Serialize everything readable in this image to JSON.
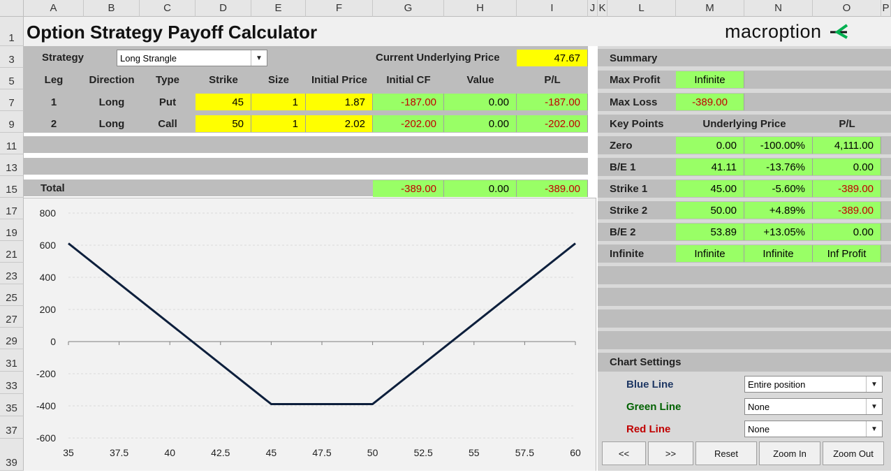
{
  "columns": [
    "A",
    "B",
    "C",
    "D",
    "E",
    "F",
    "G",
    "H",
    "I",
    "J",
    "K",
    "L",
    "M",
    "N",
    "O",
    "P"
  ],
  "rows": [
    "1",
    "3",
    "5",
    "7",
    "9",
    "11",
    "13",
    "15",
    "17",
    "19",
    "21",
    "23",
    "25",
    "27",
    "29",
    "31",
    "33",
    "35",
    "37",
    "39"
  ],
  "title": "Option Strategy Payoff Calculator",
  "logo": {
    "text": "macroption",
    "accent": "#00b050"
  },
  "strategy": {
    "label": "Strategy",
    "value": "Long Strangle"
  },
  "underlying": {
    "label": "Current Underlying Price",
    "value": "47.67"
  },
  "legs_table": {
    "headers": [
      "Leg",
      "Direction",
      "Type",
      "Strike",
      "Size",
      "Initial Price",
      "Initial CF",
      "Value",
      "P/L"
    ],
    "rows": [
      {
        "leg": "1",
        "direction": "Long",
        "type": "Put",
        "strike": "45",
        "size": "1",
        "price": "1.87",
        "cf": "-187.00",
        "value": "0.00",
        "pl": "-187.00"
      },
      {
        "leg": "2",
        "direction": "Long",
        "type": "Call",
        "strike": "50",
        "size": "1",
        "price": "2.02",
        "cf": "-202.00",
        "value": "0.00",
        "pl": "-202.00"
      }
    ],
    "total": {
      "label": "Total",
      "cf": "-389.00",
      "value": "0.00",
      "pl": "-389.00"
    }
  },
  "summary": {
    "title": "Summary",
    "max_profit": {
      "label": "Max Profit",
      "value": "Infinite"
    },
    "max_loss": {
      "label": "Max Loss",
      "value": "-389.00"
    }
  },
  "key_points": {
    "headers": [
      "Key Points",
      "Underlying Price",
      "P/L"
    ],
    "rows": [
      {
        "label": "Zero",
        "price": "0.00",
        "pct": "-100.00%",
        "pl": "4,111.00"
      },
      {
        "label": "B/E 1",
        "price": "41.11",
        "pct": "-13.76%",
        "pl": "0.00"
      },
      {
        "label": "Strike 1",
        "price": "45.00",
        "pct": "-5.60%",
        "pl": "-389.00"
      },
      {
        "label": "Strike 2",
        "price": "50.00",
        "pct": "+4.89%",
        "pl": "-389.00"
      },
      {
        "label": "B/E 2",
        "price": "53.89",
        "pct": "+13.05%",
        "pl": "0.00"
      },
      {
        "label": "Infinite",
        "price": "Infinite",
        "pct": "Infinite",
        "pl": "Inf Profit"
      }
    ]
  },
  "chart_settings": {
    "title": "Chart Settings",
    "blue": {
      "label": "Blue Line",
      "value": "Entire position",
      "color": "#1f3864"
    },
    "green": {
      "label": "Green Line",
      "value": "None",
      "color": "#006100"
    },
    "red": {
      "label": "Red Line",
      "value": "None",
      "color": "#c00000"
    }
  },
  "buttons": {
    "prev": "<<",
    "next": ">>",
    "reset": "Reset",
    "zoom_in": "Zoom In",
    "zoom_out": "Zoom Out"
  },
  "chart_data": {
    "type": "line",
    "title": "",
    "xlabel": "",
    "ylabel": "",
    "xlim": [
      35,
      60
    ],
    "ylim": [
      -600,
      800
    ],
    "x_ticks": [
      "35",
      "37.5",
      "40",
      "42.5",
      "45",
      "47.5",
      "50",
      "52.5",
      "55",
      "57.5",
      "60"
    ],
    "y_ticks": [
      "800",
      "600",
      "400",
      "200",
      "0",
      "-200",
      "-400",
      "-600"
    ],
    "grid": true,
    "series": [
      {
        "color": "#0d1f3c",
        "x": [
          35,
          45,
          50,
          60
        ],
        "y": [
          611,
          -389,
          -389,
          611
        ]
      }
    ]
  }
}
